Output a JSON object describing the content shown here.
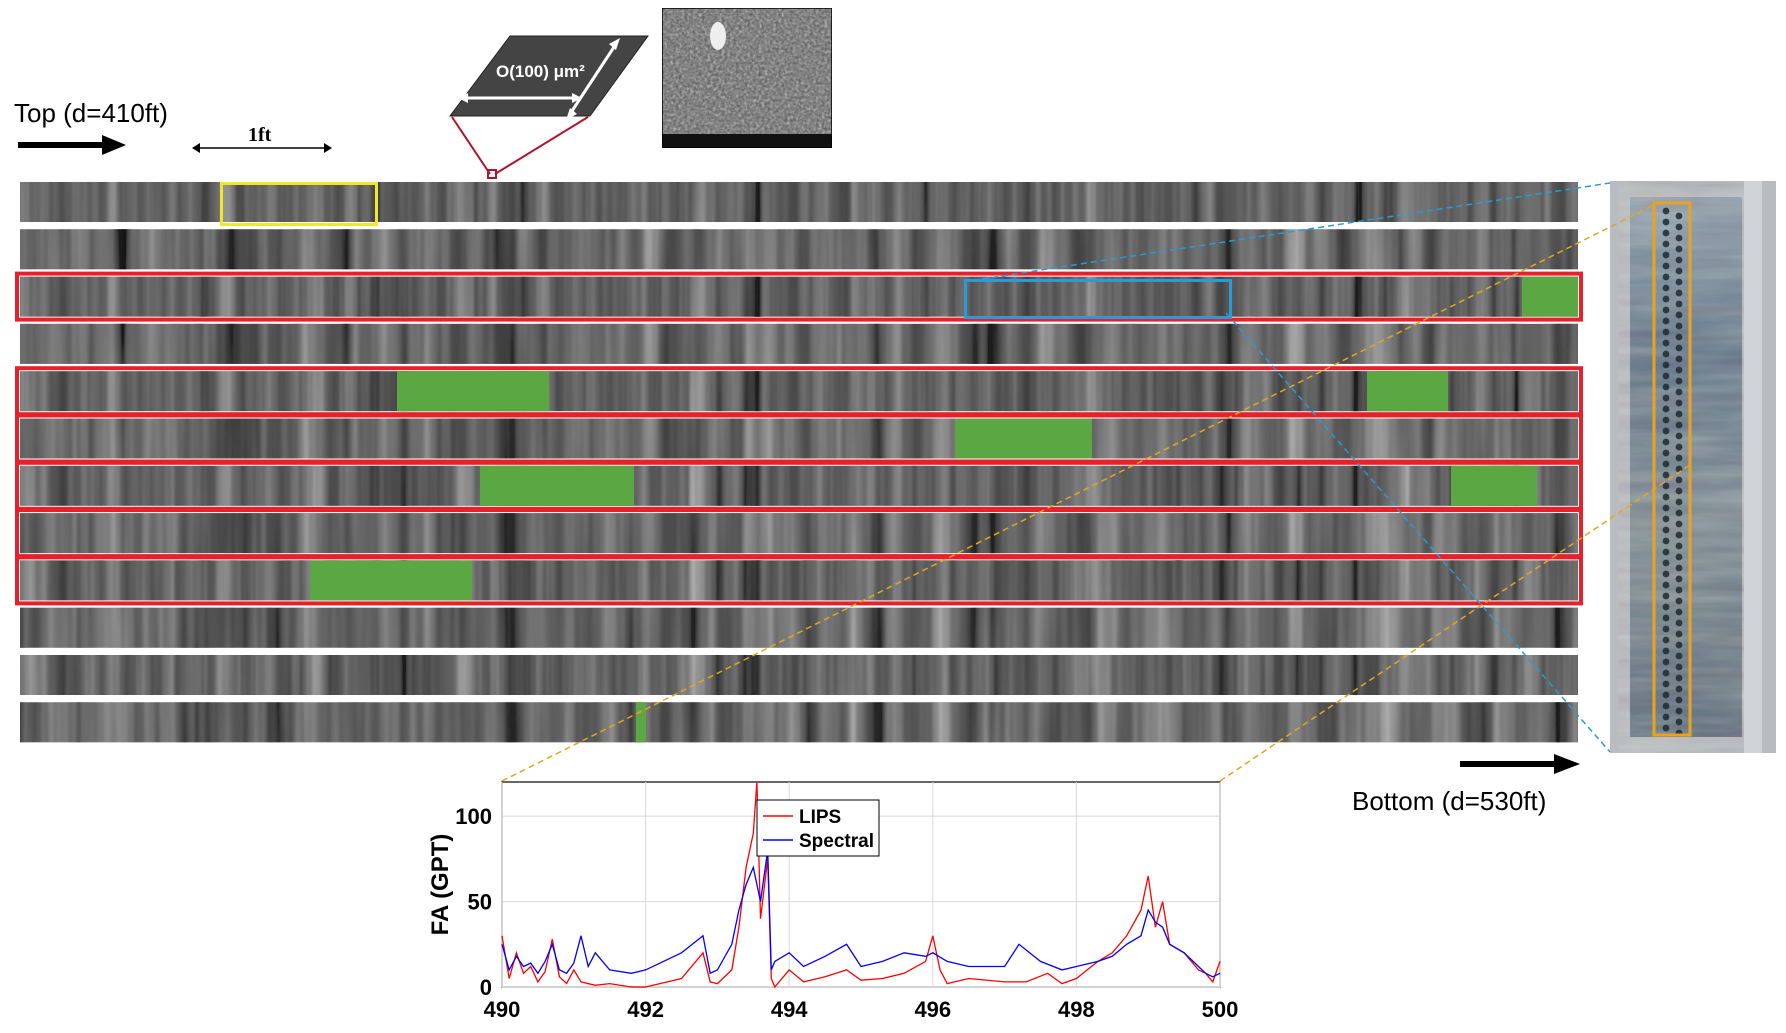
{
  "labels": {
    "top": "Top (d=410ft)",
    "bottom": "Bottom (d=530ft)",
    "scale": "1ft",
    "area": "O(100) μm²"
  },
  "colors": {
    "highlight_frame": "#e8202a",
    "patch": "#5aa744",
    "scale_box": "#f0e62a",
    "zoom_box": "#2a9ad8",
    "zoom_lines_orange": "#e8a420",
    "lips": "#ff0000",
    "spectral": "#0000ff"
  },
  "core_strips": {
    "count": 12,
    "highlighted": [
      3,
      5,
      6,
      7,
      8,
      9
    ]
  },
  "chart_data": {
    "type": "line",
    "ylabel": "FA (GPT)",
    "xlabel": "",
    "xlim": [
      490,
      500
    ],
    "ylim": [
      0,
      120
    ],
    "xticks": [
      490,
      492,
      494,
      496,
      498,
      500
    ],
    "yticks": [
      0,
      50,
      100
    ],
    "grid": true,
    "legend_position": "top-center",
    "series": [
      {
        "name": "LIPS",
        "color": "#ff0000",
        "points": [
          [
            490.0,
            30
          ],
          [
            490.1,
            5
          ],
          [
            490.2,
            20
          ],
          [
            490.3,
            8
          ],
          [
            490.4,
            12
          ],
          [
            490.5,
            3
          ],
          [
            490.6,
            9
          ],
          [
            490.7,
            28
          ],
          [
            490.8,
            6
          ],
          [
            490.9,
            2
          ],
          [
            491.0,
            10
          ],
          [
            491.1,
            3
          ],
          [
            491.3,
            1
          ],
          [
            491.5,
            2
          ],
          [
            491.8,
            0
          ],
          [
            492.0,
            0
          ],
          [
            492.5,
            5
          ],
          [
            492.8,
            20
          ],
          [
            492.9,
            3
          ],
          [
            493.0,
            2
          ],
          [
            493.2,
            10
          ],
          [
            493.3,
            35
          ],
          [
            493.4,
            70
          ],
          [
            493.5,
            90
          ],
          [
            493.55,
            120
          ],
          [
            493.6,
            40
          ],
          [
            493.7,
            75
          ],
          [
            493.75,
            5
          ],
          [
            493.8,
            0
          ],
          [
            494.0,
            10
          ],
          [
            494.2,
            3
          ],
          [
            494.5,
            6
          ],
          [
            494.8,
            10
          ],
          [
            495.0,
            4
          ],
          [
            495.3,
            5
          ],
          [
            495.6,
            8
          ],
          [
            495.9,
            15
          ],
          [
            496.0,
            30
          ],
          [
            496.1,
            10
          ],
          [
            496.2,
            2
          ],
          [
            496.5,
            5
          ],
          [
            497.0,
            3
          ],
          [
            497.3,
            3
          ],
          [
            497.6,
            8
          ],
          [
            497.8,
            2
          ],
          [
            498.0,
            5
          ],
          [
            498.3,
            15
          ],
          [
            498.5,
            20
          ],
          [
            498.7,
            30
          ],
          [
            498.9,
            45
          ],
          [
            499.0,
            65
          ],
          [
            499.1,
            35
          ],
          [
            499.2,
            50
          ],
          [
            499.3,
            25
          ],
          [
            499.5,
            20
          ],
          [
            499.7,
            10
          ],
          [
            499.8,
            8
          ],
          [
            499.9,
            3
          ],
          [
            500.0,
            15
          ]
        ]
      },
      {
        "name": "Spectral",
        "color": "#0000ff",
        "points": [
          [
            490.0,
            25
          ],
          [
            490.1,
            10
          ],
          [
            490.2,
            18
          ],
          [
            490.3,
            12
          ],
          [
            490.4,
            14
          ],
          [
            490.5,
            8
          ],
          [
            490.6,
            15
          ],
          [
            490.7,
            25
          ],
          [
            490.8,
            10
          ],
          [
            490.9,
            8
          ],
          [
            491.0,
            14
          ],
          [
            491.1,
            30
          ],
          [
            491.2,
            12
          ],
          [
            491.3,
            20
          ],
          [
            491.5,
            10
          ],
          [
            491.8,
            8
          ],
          [
            492.0,
            10
          ],
          [
            492.5,
            20
          ],
          [
            492.8,
            30
          ],
          [
            492.9,
            8
          ],
          [
            493.0,
            10
          ],
          [
            493.2,
            25
          ],
          [
            493.3,
            45
          ],
          [
            493.4,
            60
          ],
          [
            493.5,
            70
          ],
          [
            493.6,
            50
          ],
          [
            493.7,
            80
          ],
          [
            493.75,
            10
          ],
          [
            493.8,
            15
          ],
          [
            494.0,
            20
          ],
          [
            494.2,
            12
          ],
          [
            494.5,
            18
          ],
          [
            494.8,
            25
          ],
          [
            495.0,
            12
          ],
          [
            495.3,
            15
          ],
          [
            495.6,
            20
          ],
          [
            495.9,
            18
          ],
          [
            496.0,
            20
          ],
          [
            496.2,
            15
          ],
          [
            496.5,
            12
          ],
          [
            497.0,
            12
          ],
          [
            497.2,
            25
          ],
          [
            497.5,
            15
          ],
          [
            497.8,
            10
          ],
          [
            498.0,
            12
          ],
          [
            498.3,
            15
          ],
          [
            498.5,
            18
          ],
          [
            498.7,
            25
          ],
          [
            498.9,
            30
          ],
          [
            499.0,
            45
          ],
          [
            499.1,
            38
          ],
          [
            499.2,
            35
          ],
          [
            499.3,
            25
          ],
          [
            499.5,
            20
          ],
          [
            499.7,
            12
          ],
          [
            499.8,
            8
          ],
          [
            499.9,
            6
          ],
          [
            500.0,
            8
          ]
        ]
      }
    ]
  }
}
